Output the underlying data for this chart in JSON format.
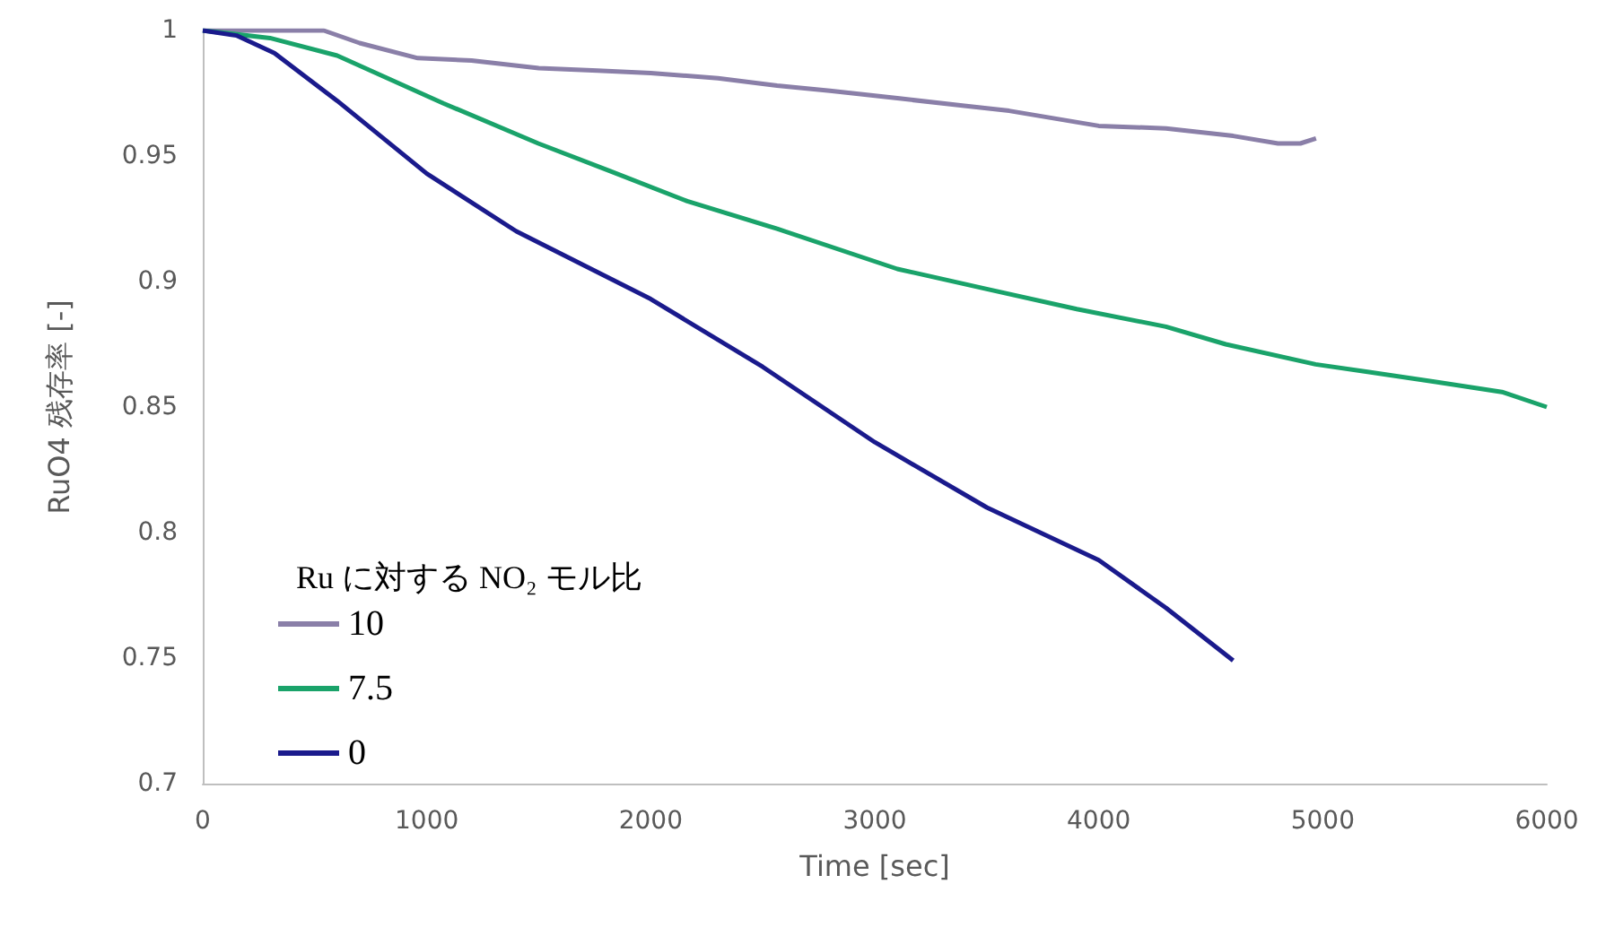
{
  "chart_data": {
    "type": "line",
    "xlabel": "Time [sec]",
    "ylabel": "RuO4 残存率 [-]",
    "legend_title": "Ru に対する NO₂ モル比",
    "xlim": [
      0,
      6000
    ],
    "xticks": [
      0,
      1000,
      2000,
      3000,
      4000,
      5000,
      6000
    ],
    "ylim": [
      0.7,
      1
    ],
    "yticks": [
      0.7,
      0.75,
      0.8,
      0.85,
      0.9,
      0.95,
      1
    ],
    "grid": false,
    "legend": "bottom left",
    "marker": "none",
    "line_style": "solid",
    "series": [
      {
        "name": "10",
        "color": "#8a7fa8",
        "x": [
          0,
          300,
          540,
          700,
          960,
          1200,
          1500,
          1763,
          2000,
          2300,
          2564,
          2800,
          3101,
          3400,
          3600,
          4000,
          4300,
          4600,
          4800,
          4900,
          4970
        ],
        "values": [
          1,
          1,
          1,
          0.995,
          0.989,
          0.988,
          0.985,
          0.984,
          0.983,
          0.981,
          0.978,
          0.976,
          0.973,
          0.97,
          0.968,
          0.962,
          0.961,
          0.958,
          0.955,
          0.955,
          0.957
        ]
      },
      {
        "name": "7.5",
        "color": "#1aa36a",
        "x": [
          0,
          300,
          600,
          1074,
          1498,
          1819,
          2163,
          2564,
          3101,
          3500,
          3902,
          4300,
          4567,
          4968,
          5200,
          5505,
          5800,
          6000
        ],
        "values": [
          1,
          0.997,
          0.99,
          0.971,
          0.955,
          0.944,
          0.932,
          0.921,
          0.905,
          0.897,
          0.889,
          0.882,
          0.875,
          0.867,
          0.864,
          0.86,
          0.856,
          0.85
        ]
      },
      {
        "name": "0",
        "color": "#1a1a8c",
        "x": [
          0,
          150,
          320,
          600,
          1000,
          1400,
          2000,
          2500,
          3000,
          3500,
          4000,
          4300,
          4600
        ],
        "values": [
          1,
          0.998,
          0.991,
          0.972,
          0.943,
          0.92,
          0.893,
          0.866,
          0.836,
          0.81,
          0.789,
          0.77,
          0.749
        ]
      }
    ]
  }
}
